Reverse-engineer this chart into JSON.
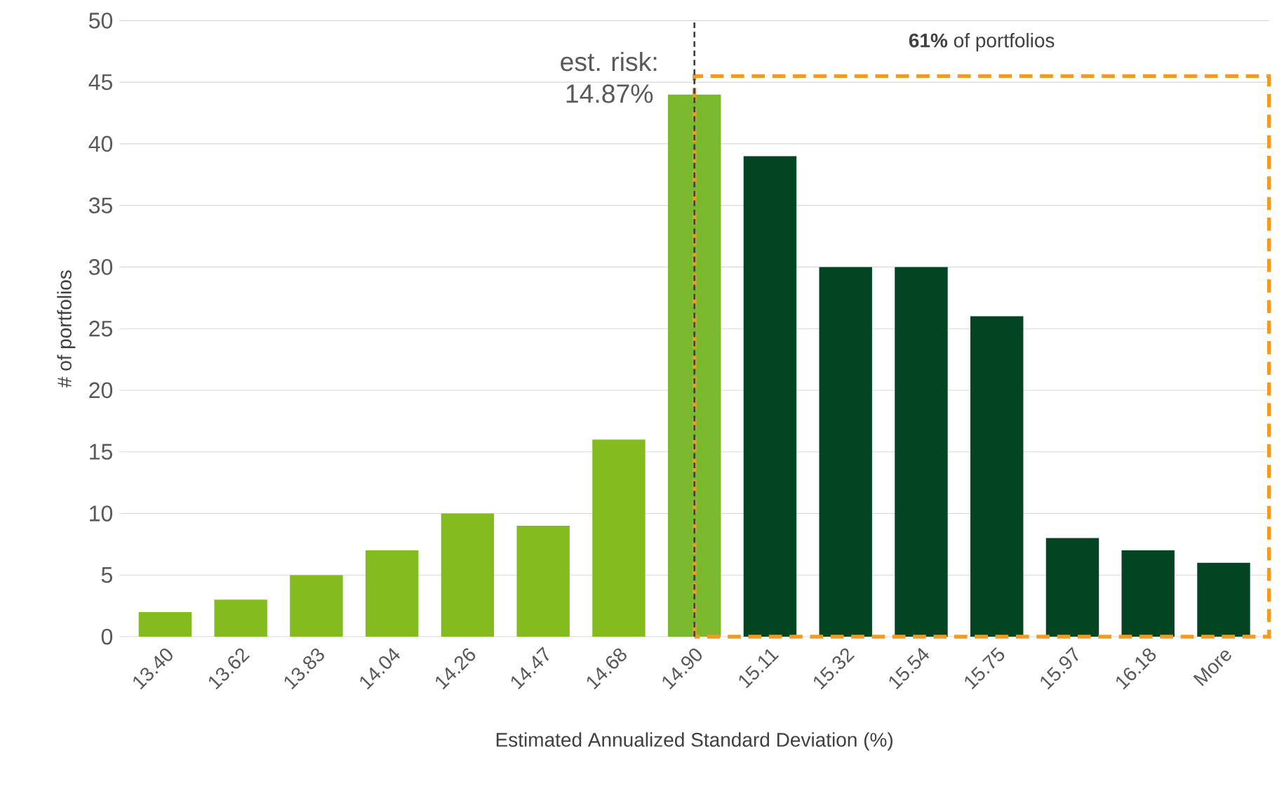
{
  "chart_data": {
    "type": "bar",
    "categories": [
      "13.40",
      "13.62",
      "13.83",
      "14.04",
      "14.26",
      "14.47",
      "14.68",
      "14.90",
      "15.11",
      "15.32",
      "15.54",
      "15.75",
      "15.97",
      "16.18",
      "More"
    ],
    "values": [
      2,
      3,
      5,
      7,
      10,
      9,
      16,
      44,
      39,
      30,
      30,
      26,
      8,
      7,
      6
    ],
    "colors": [
      "#84bc1f",
      "#84bc1f",
      "#84bc1f",
      "#84bc1f",
      "#84bc1f",
      "#84bc1f",
      "#84bc1f",
      "#7ab82e",
      "#034423",
      "#034423",
      "#034423",
      "#034423",
      "#034423",
      "#034423",
      "#034423"
    ],
    "xlabel": "Estimated Annualized Standard Deviation (%)",
    "ylabel": "# of portfolios",
    "ylim": [
      0,
      50
    ],
    "yticks": [
      0,
      5,
      10,
      15,
      20,
      25,
      30,
      35,
      40,
      45,
      50
    ],
    "grid": "y",
    "ref_lines": [
      {
        "axis": "x",
        "value": "14.90",
        "label": "est. risk: 14.87%",
        "color": "#404040",
        "line_style": "dashed"
      }
    ],
    "annotations": [
      "**61%** of portfolios"
    ]
  }
}
